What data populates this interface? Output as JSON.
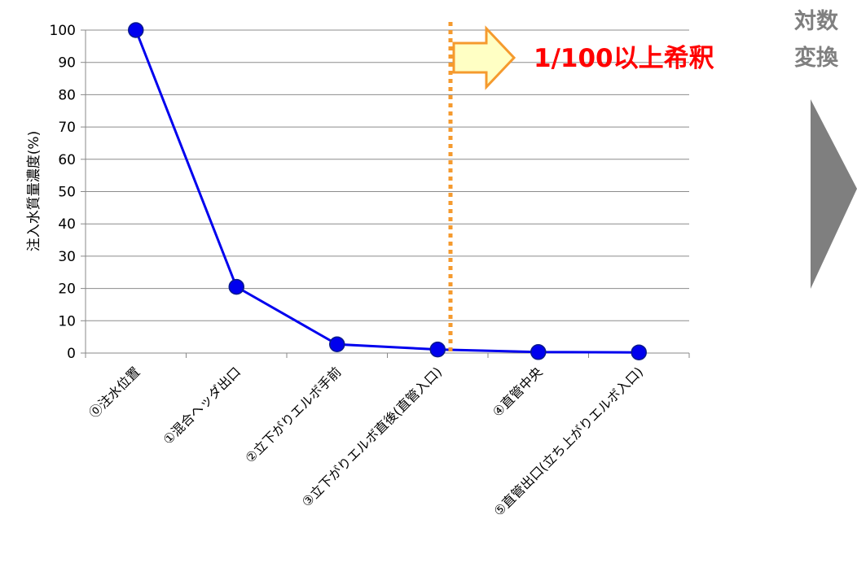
{
  "chart_data": {
    "type": "line",
    "categories": [
      "⓪注水位置",
      "①混合ヘッダ出口",
      "②立下がりエルボ手前",
      "③立下がりエルボ直後(直管入口)",
      "④直管中央",
      "⑤直管出口(立ち上がりエルボ入口)"
    ],
    "series": [
      {
        "values": [
          100,
          20.5,
          2.7,
          1.1,
          0.3,
          0.2
        ]
      }
    ],
    "ylabel": "注入水質量濃度(%)",
    "ylim": [
      0,
      100
    ],
    "yticks": [
      0,
      10,
      20,
      30,
      40,
      50,
      60,
      70,
      80,
      90,
      100
    ],
    "grid": true,
    "line_color": "#0000ee",
    "marker_color": "#0000ee",
    "threshold_line": {
      "between_categories": [
        3,
        4
      ],
      "color": "#f59a2e",
      "style": "dotted"
    },
    "annotation": "1/100以上希釈",
    "annotation_color": "#ff0000",
    "arrow_color": "#f59a2e",
    "arrow_fill": "#ffffc4"
  },
  "side_label": {
    "line1": "対数",
    "line2": "変換",
    "color": "#7f7f7f"
  },
  "side_arrow_color": "#7f7f7f"
}
